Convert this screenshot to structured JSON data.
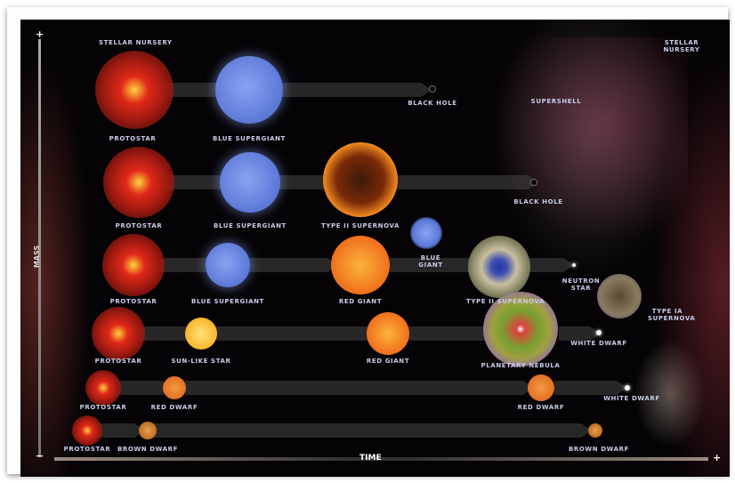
{
  "corner_labels": {
    "top_left": "STELLAR NURSERY",
    "top_right": "STELLAR NURSERY",
    "supershell": "SUPERSHELL"
  },
  "axes": {
    "mass": "MASS",
    "time": "TIME",
    "plus": "+",
    "minus": "−"
  },
  "colors": {
    "protostar": "#e0281a",
    "blue": "#5b78d8",
    "red_giant": "#f06a1a",
    "sun": "#f7b021",
    "dwarf": "#e06a20",
    "background": "#050305"
  },
  "stages": [
    {
      "id": "r1-proto",
      "label": "PROTOSTAR",
      "type": "protostar"
    },
    {
      "id": "r1-bsg",
      "label": "BLUE SUPERGIANT",
      "type": "blue"
    },
    {
      "id": "r1-bh",
      "label": "BLACK HOLE",
      "type": "blackhole"
    },
    {
      "id": "r2-proto",
      "label": "PROTOSTAR",
      "type": "protostar"
    },
    {
      "id": "r2-bsg",
      "label": "BLUE SUPERGIANT",
      "type": "blue"
    },
    {
      "id": "r2-sn",
      "label": "TYPE II SUPERNOVA",
      "type": "supernova"
    },
    {
      "id": "r2-bh",
      "label": "BLACK HOLE",
      "type": "blackhole"
    },
    {
      "id": "r3-proto",
      "label": "PROTOSTAR",
      "type": "protostar"
    },
    {
      "id": "r3-bsg",
      "label": "BLUE SUPERGIANT",
      "type": "blue"
    },
    {
      "id": "r3-rg",
      "label": "RED GIANT",
      "type": "red_giant"
    },
    {
      "id": "r3-bg",
      "label": "BLUE GIANT",
      "type": "blue_giant"
    },
    {
      "id": "r3-sn",
      "label": "TYPE II SUPERNOVA",
      "type": "supernova2"
    },
    {
      "id": "r3-ns",
      "label": "NEUTRON STAR",
      "type": "point"
    },
    {
      "id": "r4-sn1a",
      "label": "TYPE IA SUPERNOVA",
      "type": "supernova1a"
    },
    {
      "id": "r4-proto",
      "label": "PROTOSTAR",
      "type": "protostar"
    },
    {
      "id": "r4-sun",
      "label": "SUN-LIKE STAR",
      "type": "sun"
    },
    {
      "id": "r4-rg",
      "label": "RED GIANT",
      "type": "red_giant"
    },
    {
      "id": "r4-pn",
      "label": "PLANETARY NEBULA",
      "type": "nebula"
    },
    {
      "id": "r4-wd",
      "label": "WHITE DWARF",
      "type": "point"
    },
    {
      "id": "r5-proto",
      "label": "PROTOSTAR",
      "type": "protostar"
    },
    {
      "id": "r5-rd1",
      "label": "RED DWARF",
      "type": "dwarf"
    },
    {
      "id": "r5-rd2",
      "label": "RED DWARF",
      "type": "dwarf"
    },
    {
      "id": "r5-wd",
      "label": "WHITE DWARF",
      "type": "point"
    },
    {
      "id": "r6-proto",
      "label": "PROTOSTAR",
      "type": "protostar"
    },
    {
      "id": "r6-bd1",
      "label": "BROWN DWARF",
      "type": "brown"
    },
    {
      "id": "r6-bd2",
      "label": "BROWN DWARF",
      "type": "brown"
    }
  ]
}
